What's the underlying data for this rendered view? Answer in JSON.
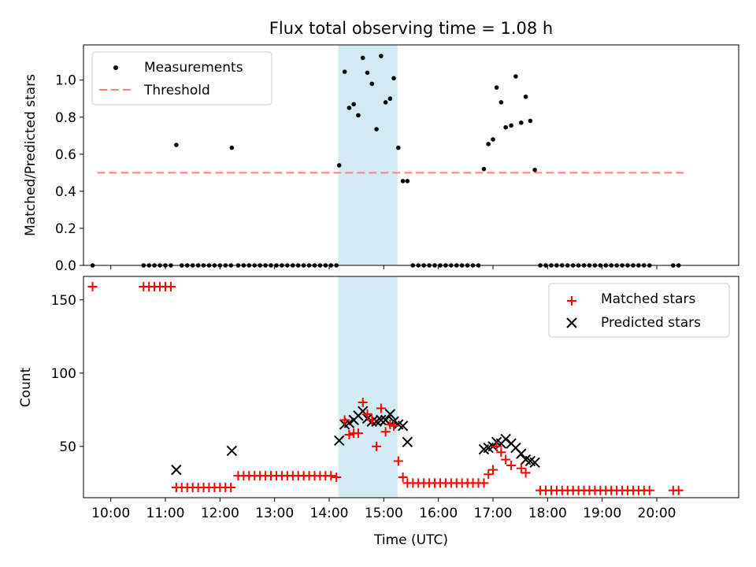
{
  "colors": {
    "band": "#add8e6",
    "threshold": "#ff8080",
    "matched": "#ff0000",
    "predicted": "#000000",
    "measurement": "#000000"
  },
  "chart_data": [
    {
      "type": "scatter",
      "title": "Flux total observing time = 1.08 h",
      "xlabel": "",
      "ylabel": "Matched/Predicted stars",
      "xlim": [
        "09:30",
        "21:30"
      ],
      "ylim": [
        0,
        1.19
      ],
      "yticks": [
        0.0,
        0.2,
        0.4,
        0.6,
        0.8,
        1.0
      ],
      "ytick_labels": [
        "0.0",
        "0.2",
        "0.4",
        "0.6",
        "0.8",
        "1.0"
      ],
      "grid": false,
      "legend_position": "upper-left",
      "legend": [
        {
          "label": "Measurements",
          "kind": "dot"
        },
        {
          "label": "Threshold",
          "kind": "dashed-line"
        }
      ],
      "shaded_band": {
        "start": "14:10",
        "end": "15:15"
      },
      "series": [
        {
          "name": "Measurements",
          "marker": "dot",
          "points": [
            [
              "09:40",
              0
            ],
            [
              "10:36",
              0
            ],
            [
              "10:42",
              0
            ],
            [
              "10:48",
              0
            ],
            [
              "10:54",
              0
            ],
            [
              "11:00",
              0
            ],
            [
              "11:06",
              0
            ],
            [
              "11:12",
              0.65
            ],
            [
              "11:18",
              0
            ],
            [
              "11:24",
              0
            ],
            [
              "11:30",
              0
            ],
            [
              "11:36",
              0
            ],
            [
              "11:42",
              0
            ],
            [
              "11:48",
              0
            ],
            [
              "11:54",
              0
            ],
            [
              "12:00",
              0
            ],
            [
              "12:06",
              0
            ],
            [
              "12:12",
              0
            ],
            [
              "12:13",
              0.635
            ],
            [
              "12:20",
              0
            ],
            [
              "12:26",
              0
            ],
            [
              "12:32",
              0
            ],
            [
              "12:38",
              0
            ],
            [
              "12:44",
              0
            ],
            [
              "12:50",
              0
            ],
            [
              "12:56",
              0
            ],
            [
              "13:02",
              0
            ],
            [
              "13:08",
              0
            ],
            [
              "13:14",
              0
            ],
            [
              "13:20",
              0
            ],
            [
              "13:26",
              0
            ],
            [
              "13:32",
              0
            ],
            [
              "13:38",
              0
            ],
            [
              "13:44",
              0
            ],
            [
              "13:50",
              0
            ],
            [
              "13:56",
              0
            ],
            [
              "14:02",
              0
            ],
            [
              "14:08",
              0
            ],
            [
              "14:11",
              0.54
            ],
            [
              "14:17",
              1.045
            ],
            [
              "14:22",
              0.85
            ],
            [
              "14:27",
              0.87
            ],
            [
              "14:32",
              0.81
            ],
            [
              "14:37",
              1.12
            ],
            [
              "14:42",
              1.04
            ],
            [
              "14:47",
              0.98
            ],
            [
              "14:52",
              0.735
            ],
            [
              "14:57",
              1.13
            ],
            [
              "15:02",
              0.88
            ],
            [
              "15:07",
              0.9
            ],
            [
              "15:11",
              1.01
            ],
            [
              "15:16",
              0.635
            ],
            [
              "15:21",
              0.455
            ],
            [
              "15:26",
              0.455
            ],
            [
              "15:32",
              0
            ],
            [
              "15:38",
              0
            ],
            [
              "15:44",
              0
            ],
            [
              "15:50",
              0
            ],
            [
              "15:56",
              0
            ],
            [
              "16:02",
              0
            ],
            [
              "16:08",
              0
            ],
            [
              "16:14",
              0
            ],
            [
              "16:20",
              0
            ],
            [
              "16:26",
              0
            ],
            [
              "16:32",
              0
            ],
            [
              "16:38",
              0
            ],
            [
              "16:44",
              0
            ],
            [
              "16:50",
              0.52
            ],
            [
              "16:55",
              0.655
            ],
            [
              "17:00",
              0.68
            ],
            [
              "17:04",
              0.96
            ],
            [
              "17:09",
              0.88
            ],
            [
              "17:14",
              0.745
            ],
            [
              "17:20",
              0.755
            ],
            [
              "17:25",
              1.02
            ],
            [
              "17:31",
              0.77
            ],
            [
              "17:36",
              0.91
            ],
            [
              "17:41",
              0.78
            ],
            [
              "17:46",
              0.515
            ],
            [
              "17:52",
              0
            ],
            [
              "17:58",
              0
            ],
            [
              "18:04",
              0
            ],
            [
              "18:10",
              0
            ],
            [
              "18:16",
              0
            ],
            [
              "18:22",
              0
            ],
            [
              "18:28",
              0
            ],
            [
              "18:34",
              0
            ],
            [
              "18:40",
              0
            ],
            [
              "18:46",
              0
            ],
            [
              "18:52",
              0
            ],
            [
              "18:58",
              0
            ],
            [
              "19:04",
              0
            ],
            [
              "19:10",
              0
            ],
            [
              "19:16",
              0
            ],
            [
              "19:22",
              0
            ],
            [
              "19:28",
              0
            ],
            [
              "19:34",
              0
            ],
            [
              "19:40",
              0
            ],
            [
              "19:46",
              0
            ],
            [
              "19:52",
              0
            ],
            [
              "20:18",
              0
            ],
            [
              "20:24",
              0
            ]
          ]
        },
        {
          "name": "Threshold",
          "kind": "dashed-line",
          "points": [
            [
              "09:45",
              0.5
            ],
            [
              "20:30",
              0.5
            ]
          ]
        }
      ]
    },
    {
      "type": "scatter",
      "title": "",
      "xlabel": "Time (UTC)",
      "ylabel": "Count",
      "xlim": [
        "09:30",
        "21:30"
      ],
      "ylim": [
        15,
        166
      ],
      "yticks": [
        50,
        100,
        150
      ],
      "ytick_labels": [
        "50",
        "100",
        "150"
      ],
      "xticks": [
        "10:00",
        "11:00",
        "12:00",
        "13:00",
        "14:00",
        "15:00",
        "16:00",
        "17:00",
        "18:00",
        "19:00",
        "20:00"
      ],
      "xtick_labels": [
        "10:00",
        "11:00",
        "12:00",
        "13:00",
        "14:00",
        "15:00",
        "16:00",
        "17:00",
        "18:00",
        "19:00",
        "20:00"
      ],
      "grid": false,
      "legend_position": "upper-right",
      "legend": [
        {
          "label": "Matched stars",
          "kind": "plus"
        },
        {
          "label": "Predicted stars",
          "kind": "x"
        }
      ],
      "shaded_band": {
        "start": "14:10",
        "end": "15:15"
      },
      "series": [
        {
          "name": "Matched stars",
          "marker": "plus",
          "points": [
            [
              "09:40",
              159
            ],
            [
              "10:36",
              159
            ],
            [
              "10:42",
              159
            ],
            [
              "10:48",
              159
            ],
            [
              "10:54",
              159
            ],
            [
              "11:00",
              159
            ],
            [
              "11:06",
              159
            ],
            [
              "11:12",
              22
            ],
            [
              "11:18",
              22
            ],
            [
              "11:24",
              22
            ],
            [
              "11:30",
              22
            ],
            [
              "11:36",
              22
            ],
            [
              "11:42",
              22
            ],
            [
              "11:48",
              22
            ],
            [
              "11:54",
              22
            ],
            [
              "12:00",
              22
            ],
            [
              "12:06",
              22
            ],
            [
              "12:12",
              22
            ],
            [
              "12:20",
              30
            ],
            [
              "12:26",
              30
            ],
            [
              "12:32",
              30
            ],
            [
              "12:38",
              30
            ],
            [
              "12:44",
              30
            ],
            [
              "12:50",
              30
            ],
            [
              "12:56",
              30
            ],
            [
              "13:02",
              30
            ],
            [
              "13:08",
              30
            ],
            [
              "13:14",
              30
            ],
            [
              "13:20",
              30
            ],
            [
              "13:26",
              30
            ],
            [
              "13:32",
              30
            ],
            [
              "13:38",
              30
            ],
            [
              "13:44",
              30
            ],
            [
              "13:50",
              30
            ],
            [
              "13:56",
              30
            ],
            [
              "14:02",
              30
            ],
            [
              "14:08",
              29
            ],
            [
              "14:17",
              68
            ],
            [
              "14:22",
              58
            ],
            [
              "14:27",
              59
            ],
            [
              "14:32",
              59
            ],
            [
              "14:37",
              80
            ],
            [
              "14:42",
              72
            ],
            [
              "14:47",
              68
            ],
            [
              "14:52",
              50
            ],
            [
              "14:57",
              76
            ],
            [
              "15:02",
              60
            ],
            [
              "15:07",
              65
            ],
            [
              "15:11",
              64
            ],
            [
              "15:16",
              40
            ],
            [
              "15:21",
              29
            ],
            [
              "15:26",
              25
            ],
            [
              "15:32",
              25
            ],
            [
              "15:38",
              25
            ],
            [
              "15:44",
              25
            ],
            [
              "15:50",
              25
            ],
            [
              "15:56",
              25
            ],
            [
              "16:02",
              25
            ],
            [
              "16:08",
              25
            ],
            [
              "16:14",
              25
            ],
            [
              "16:20",
              25
            ],
            [
              "16:26",
              25
            ],
            [
              "16:32",
              25
            ],
            [
              "16:38",
              25
            ],
            [
              "16:44",
              25
            ],
            [
              "16:50",
              25
            ],
            [
              "16:55",
              31
            ],
            [
              "17:00",
              34
            ],
            [
              "17:04",
              50
            ],
            [
              "17:09",
              46
            ],
            [
              "17:14",
              41
            ],
            [
              "17:20",
              37
            ],
            [
              "17:31",
              35
            ],
            [
              "17:36",
              32
            ],
            [
              "17:52",
              20
            ],
            [
              "17:58",
              20
            ],
            [
              "18:04",
              20
            ],
            [
              "18:10",
              20
            ],
            [
              "18:16",
              20
            ],
            [
              "18:22",
              20
            ],
            [
              "18:28",
              20
            ],
            [
              "18:34",
              20
            ],
            [
              "18:40",
              20
            ],
            [
              "18:46",
              20
            ],
            [
              "18:52",
              20
            ],
            [
              "18:58",
              20
            ],
            [
              "19:04",
              20
            ],
            [
              "19:10",
              20
            ],
            [
              "19:16",
              20
            ],
            [
              "19:22",
              20
            ],
            [
              "19:28",
              20
            ],
            [
              "19:34",
              20
            ],
            [
              "19:40",
              20
            ],
            [
              "19:46",
              20
            ],
            [
              "19:52",
              20
            ],
            [
              "20:18",
              20
            ],
            [
              "20:24",
              20
            ]
          ]
        },
        {
          "name": "Predicted stars",
          "marker": "x",
          "points": [
            [
              "11:12",
              34
            ],
            [
              "12:13",
              47
            ],
            [
              "14:11",
              54
            ],
            [
              "14:17",
              65
            ],
            [
              "14:22",
              66
            ],
            [
              "14:27",
              68
            ],
            [
              "14:32",
              71
            ],
            [
              "14:37",
              74
            ],
            [
              "14:42",
              69
            ],
            [
              "14:47",
              67
            ],
            [
              "14:52",
              67
            ],
            [
              "14:57",
              68
            ],
            [
              "15:02",
              68
            ],
            [
              "15:07",
              72
            ],
            [
              "15:11",
              67
            ],
            [
              "15:16",
              65
            ],
            [
              "15:21",
              64
            ],
            [
              "15:26",
              53
            ],
            [
              "16:50",
              48
            ],
            [
              "16:55",
              49
            ],
            [
              "17:00",
              50
            ],
            [
              "17:04",
              53
            ],
            [
              "17:09",
              52
            ],
            [
              "17:14",
              55
            ],
            [
              "17:20",
              52
            ],
            [
              "17:25",
              49
            ],
            [
              "17:31",
              45
            ],
            [
              "17:36",
              41
            ],
            [
              "17:41",
              40
            ],
            [
              "17:46",
              39
            ]
          ]
        }
      ]
    }
  ]
}
